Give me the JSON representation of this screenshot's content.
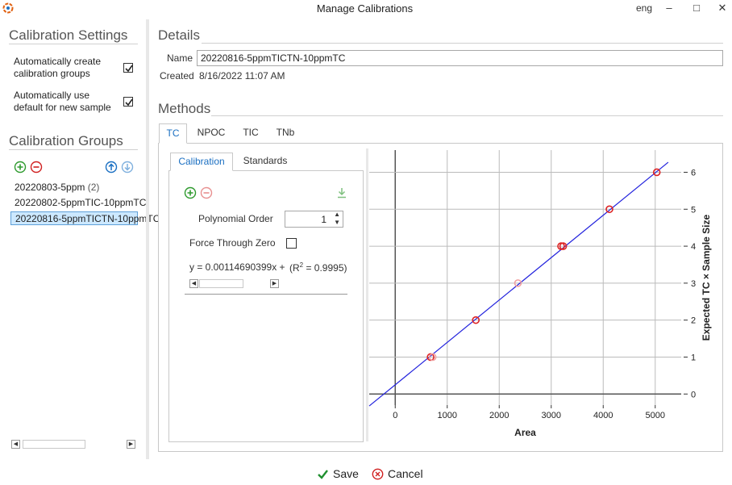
{
  "window": {
    "title": "Manage Calibrations",
    "language": "eng",
    "minimize_glyph": "–",
    "maximize_glyph": "□",
    "close_glyph": "✕"
  },
  "sidebar": {
    "settings_title": "Calibration Settings",
    "settings": [
      {
        "line1": "Automatically create",
        "line2": "calibration groups",
        "checked": true
      },
      {
        "line1": "Automatically use",
        "line2": "default for new sample",
        "checked": true
      }
    ],
    "groups_title": "Calibration Groups",
    "groups": [
      {
        "label": "20220803-5ppm",
        "count": "(2)",
        "selected": false
      },
      {
        "label": "20220802-5ppmTIC-10ppmTC",
        "count": "",
        "selected": false
      },
      {
        "label": "20220816-5ppmTICTN-10ppmTC",
        "count": "",
        "selected": true
      }
    ],
    "icons": {
      "add": "plus-circle-icon",
      "remove": "minus-circle-icon",
      "up": "arrow-up-icon",
      "down": "arrow-down-icon"
    },
    "colors": {
      "add": "#2e9a2e",
      "remove": "#d02020",
      "up": "#1a6fc2",
      "down": "#7fb0de"
    }
  },
  "details": {
    "title": "Details",
    "name_label": "Name",
    "name_value": "20220816-5ppmTICTN-10ppmTC",
    "created_label": "Created",
    "created_value": "8/16/2022 11:07 AM"
  },
  "methods": {
    "title": "Methods",
    "tabs": [
      {
        "label": "TC",
        "active": true
      },
      {
        "label": "NPOC",
        "active": false
      },
      {
        "label": "TIC",
        "active": false
      },
      {
        "label": "TNb",
        "active": false
      }
    ],
    "subtabs": [
      {
        "label": "Calibration",
        "active": true
      },
      {
        "label": "Standards",
        "active": false
      }
    ],
    "calibration": {
      "polynomial_order_label": "Polynomial Order",
      "polynomial_order_value": "1",
      "force_zero_label": "Force Through Zero",
      "force_zero_checked": false,
      "equation": "y = 0.00114690399x +",
      "r2_prefix": "(R",
      "r2_sup": "2",
      "r2_suffix": " = 0.9995)"
    }
  },
  "chart_data": {
    "type": "scatter",
    "xlabel": "Area",
    "ylabel": "Expected TC × Sample Size",
    "xlim": [
      -500,
      5500
    ],
    "ylim": [
      -0.3,
      6.6
    ],
    "x_ticks": [
      0,
      1000,
      2000,
      3000,
      4000,
      5000
    ],
    "y_ticks": [
      0,
      1,
      2,
      3,
      4,
      5,
      6
    ],
    "x_tick_labels": [
      "0",
      "1000",
      "2000",
      "3000",
      "4000",
      "5000"
    ],
    "y_tick_labels": [
      "0",
      "1",
      "2",
      "3",
      "4",
      "5",
      "6"
    ],
    "grid": true,
    "y_axis_side": "right",
    "points": [
      {
        "x": 680,
        "y": 1.0,
        "style": "open"
      },
      {
        "x": 720,
        "y": 1.0,
        "style": "faint"
      },
      {
        "x": 1550,
        "y": 2.0,
        "style": "open"
      },
      {
        "x": 2360,
        "y": 3.0,
        "style": "faint"
      },
      {
        "x": 3190,
        "y": 4.0,
        "style": "open"
      },
      {
        "x": 3230,
        "y": 4.0,
        "style": "open"
      },
      {
        "x": 4120,
        "y": 5.0,
        "style": "open"
      },
      {
        "x": 5030,
        "y": 6.0,
        "style": "open"
      }
    ],
    "fit_line": {
      "slope": 0.00114690399,
      "intercept": 0.25,
      "x_range": [
        -500,
        5250
      ]
    },
    "colors": {
      "line": "#2222dd",
      "marker": "#dd2222",
      "marker_faint": "#f0a0a0",
      "grid": "#bbbbbb",
      "axis": "#555555"
    }
  },
  "footer": {
    "save_label": "Save",
    "cancel_label": "Cancel",
    "save_icon": "checkmark-icon",
    "cancel_icon": "cancel-circle-icon",
    "colors": {
      "save": "#1f8f2f",
      "cancel": "#d02020"
    }
  }
}
